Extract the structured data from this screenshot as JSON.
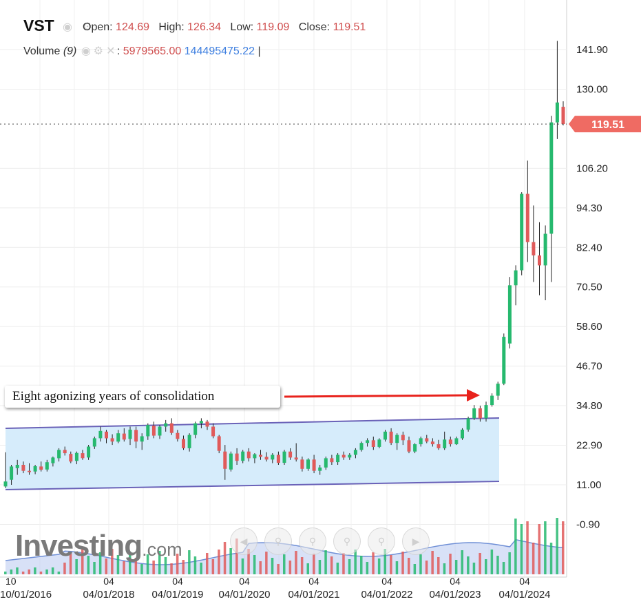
{
  "header": {
    "symbol": "VST",
    "open_label": "Open:",
    "open_value": "124.69",
    "high_label": "High:",
    "high_value": "126.34",
    "low_label": "Low:",
    "low_value": "119.09",
    "close_label": "Close:",
    "close_value": "119.51",
    "volume_label": "Volume",
    "volume_period": "(9)",
    "volume_value_1": "5979565.00",
    "volume_value_2": "144495475.22"
  },
  "annotation": {
    "text": "Eight agonizing years of consolidation"
  },
  "watermark": {
    "text_main": "Investing",
    "text_suffix": ".com"
  },
  "colors": {
    "up": "#26b96e",
    "down": "#e05a5a",
    "channel_fill": "#d6ecfb",
    "channel_line": "#6a62b8",
    "arrow": "#e8221c",
    "price_tag": "#ef6b63",
    "volume_avg_fill": "#b8c8f0",
    "volume_avg_line": "#6f8fd6"
  },
  "chart_data": {
    "type": "candlestick",
    "title": "VST",
    "y_axis": {
      "ticks": [
        "141.90",
        "130.00",
        "106.20",
        "94.30",
        "82.40",
        "70.50",
        "58.60",
        "46.70",
        "34.80",
        "22.90",
        "11.00",
        "-0.90"
      ],
      "range": [
        -0.9,
        141.9
      ],
      "position": "right"
    },
    "x_axis": {
      "ticks": [
        {
          "top": "10",
          "bottom": "10/01/2016"
        },
        {
          "top": "04",
          "bottom": "04/01/2018"
        },
        {
          "top": "04",
          "bottom": "04/01/2019"
        },
        {
          "top": "04",
          "bottom": "04/01/2020"
        },
        {
          "top": "04",
          "bottom": "04/01/2021"
        },
        {
          "top": "04",
          "bottom": "04/01/2022"
        },
        {
          "top": "04",
          "bottom": "04/01/2023"
        },
        {
          "top": "04",
          "bottom": "04/01/2024"
        }
      ]
    },
    "last_price": "119.51",
    "candles": [
      {
        "o": 10.5,
        "h": 20.8,
        "l": 10.0,
        "c": 12.0
      },
      {
        "o": 12.5,
        "h": 17.0,
        "l": 11.0,
        "c": 16.5
      },
      {
        "o": 16.0,
        "h": 18.5,
        "l": 14.0,
        "c": 17.0
      },
      {
        "o": 17.0,
        "h": 18.0,
        "l": 14.5,
        "c": 15.2
      },
      {
        "o": 15.2,
        "h": 17.5,
        "l": 14.0,
        "c": 14.8
      },
      {
        "o": 15.0,
        "h": 17.0,
        "l": 14.2,
        "c": 16.6
      },
      {
        "o": 16.5,
        "h": 18.0,
        "l": 15.0,
        "c": 15.5
      },
      {
        "o": 15.6,
        "h": 18.5,
        "l": 15.0,
        "c": 17.8
      },
      {
        "o": 17.5,
        "h": 19.5,
        "l": 16.5,
        "c": 19.2
      },
      {
        "o": 19.0,
        "h": 22.0,
        "l": 18.0,
        "c": 21.5
      },
      {
        "o": 21.5,
        "h": 22.5,
        "l": 19.8,
        "c": 20.5
      },
      {
        "o": 20.3,
        "h": 21.0,
        "l": 17.5,
        "c": 18.0
      },
      {
        "o": 18.2,
        "h": 21.0,
        "l": 17.2,
        "c": 20.6
      },
      {
        "o": 20.5,
        "h": 21.5,
        "l": 18.5,
        "c": 19.0
      },
      {
        "o": 19.2,
        "h": 23.0,
        "l": 18.5,
        "c": 22.5
      },
      {
        "o": 22.5,
        "h": 25.5,
        "l": 21.8,
        "c": 25.0
      },
      {
        "o": 25.0,
        "h": 28.5,
        "l": 24.0,
        "c": 27.2
      },
      {
        "o": 27.0,
        "h": 27.5,
        "l": 23.5,
        "c": 25.0
      },
      {
        "o": 25.0,
        "h": 26.2,
        "l": 23.0,
        "c": 24.0
      },
      {
        "o": 24.0,
        "h": 27.5,
        "l": 23.5,
        "c": 26.5
      },
      {
        "o": 26.4,
        "h": 28.0,
        "l": 24.0,
        "c": 24.6
      },
      {
        "o": 24.8,
        "h": 28.5,
        "l": 23.0,
        "c": 27.6
      },
      {
        "o": 27.5,
        "h": 28.5,
        "l": 22.0,
        "c": 24.0
      },
      {
        "o": 24.0,
        "h": 26.5,
        "l": 21.5,
        "c": 25.6
      },
      {
        "o": 25.6,
        "h": 29.5,
        "l": 24.5,
        "c": 29.0
      },
      {
        "o": 28.8,
        "h": 30.0,
        "l": 25.0,
        "c": 25.8
      },
      {
        "o": 25.8,
        "h": 29.0,
        "l": 24.8,
        "c": 28.5
      },
      {
        "o": 28.5,
        "h": 30.5,
        "l": 27.0,
        "c": 29.5
      },
      {
        "o": 29.5,
        "h": 31.0,
        "l": 26.0,
        "c": 26.6
      },
      {
        "o": 26.6,
        "h": 27.5,
        "l": 24.0,
        "c": 24.8
      },
      {
        "o": 24.8,
        "h": 25.8,
        "l": 21.5,
        "c": 22.0
      },
      {
        "o": 22.0,
        "h": 26.5,
        "l": 21.0,
        "c": 26.0
      },
      {
        "o": 26.0,
        "h": 30.0,
        "l": 25.0,
        "c": 29.5
      },
      {
        "o": 29.5,
        "h": 31.0,
        "l": 28.0,
        "c": 30.2
      },
      {
        "o": 30.0,
        "h": 30.5,
        "l": 27.5,
        "c": 28.5
      },
      {
        "o": 28.5,
        "h": 29.5,
        "l": 25.0,
        "c": 25.6
      },
      {
        "o": 25.6,
        "h": 26.0,
        "l": 20.5,
        "c": 21.2
      },
      {
        "o": 21.0,
        "h": 23.0,
        "l": 12.5,
        "c": 15.8
      },
      {
        "o": 15.6,
        "h": 21.0,
        "l": 15.0,
        "c": 20.4
      },
      {
        "o": 20.4,
        "h": 22.0,
        "l": 17.0,
        "c": 18.2
      },
      {
        "o": 18.2,
        "h": 21.5,
        "l": 17.5,
        "c": 21.0
      },
      {
        "o": 21.0,
        "h": 22.0,
        "l": 18.0,
        "c": 19.0
      },
      {
        "o": 19.0,
        "h": 20.5,
        "l": 17.5,
        "c": 20.2
      },
      {
        "o": 20.0,
        "h": 21.5,
        "l": 18.5,
        "c": 19.4
      },
      {
        "o": 19.4,
        "h": 20.8,
        "l": 18.0,
        "c": 18.6
      },
      {
        "o": 18.6,
        "h": 20.5,
        "l": 17.5,
        "c": 20.0
      },
      {
        "o": 20.0,
        "h": 21.0,
        "l": 17.0,
        "c": 17.6
      },
      {
        "o": 17.6,
        "h": 21.5,
        "l": 17.0,
        "c": 21.0
      },
      {
        "o": 21.0,
        "h": 22.0,
        "l": 18.5,
        "c": 19.2
      },
      {
        "o": 19.2,
        "h": 23.5,
        "l": 18.0,
        "c": 18.6
      },
      {
        "o": 18.6,
        "h": 19.5,
        "l": 15.0,
        "c": 15.8
      },
      {
        "o": 15.8,
        "h": 19.0,
        "l": 15.2,
        "c": 18.6
      },
      {
        "o": 18.6,
        "h": 20.0,
        "l": 14.5,
        "c": 15.2
      },
      {
        "o": 15.2,
        "h": 17.0,
        "l": 14.0,
        "c": 16.2
      },
      {
        "o": 16.2,
        "h": 19.5,
        "l": 15.5,
        "c": 19.0
      },
      {
        "o": 19.0,
        "h": 20.0,
        "l": 17.0,
        "c": 17.8
      },
      {
        "o": 17.8,
        "h": 20.5,
        "l": 17.0,
        "c": 20.0
      },
      {
        "o": 20.0,
        "h": 21.0,
        "l": 18.5,
        "c": 19.2
      },
      {
        "o": 19.2,
        "h": 20.5,
        "l": 18.5,
        "c": 20.0
      },
      {
        "o": 20.0,
        "h": 22.0,
        "l": 19.0,
        "c": 21.5
      },
      {
        "o": 21.5,
        "h": 24.0,
        "l": 21.0,
        "c": 23.6
      },
      {
        "o": 23.6,
        "h": 25.0,
        "l": 22.5,
        "c": 24.4
      },
      {
        "o": 24.4,
        "h": 25.5,
        "l": 21.5,
        "c": 22.4
      },
      {
        "o": 22.4,
        "h": 25.0,
        "l": 22.0,
        "c": 24.6
      },
      {
        "o": 24.6,
        "h": 27.5,
        "l": 24.0,
        "c": 27.0
      },
      {
        "o": 27.0,
        "h": 28.0,
        "l": 23.0,
        "c": 23.6
      },
      {
        "o": 23.6,
        "h": 26.5,
        "l": 21.5,
        "c": 26.0
      },
      {
        "o": 26.0,
        "h": 27.0,
        "l": 23.0,
        "c": 24.4
      },
      {
        "o": 24.4,
        "h": 25.5,
        "l": 20.5,
        "c": 21.0
      },
      {
        "o": 21.0,
        "h": 23.5,
        "l": 20.5,
        "c": 23.2
      },
      {
        "o": 23.2,
        "h": 25.5,
        "l": 22.5,
        "c": 25.0
      },
      {
        "o": 25.0,
        "h": 26.0,
        "l": 23.5,
        "c": 24.0
      },
      {
        "o": 24.0,
        "h": 25.0,
        "l": 22.5,
        "c": 23.2
      },
      {
        "o": 23.2,
        "h": 24.5,
        "l": 21.5,
        "c": 22.0
      },
      {
        "o": 22.0,
        "h": 27.0,
        "l": 21.5,
        "c": 24.6
      },
      {
        "o": 24.6,
        "h": 25.5,
        "l": 22.5,
        "c": 23.2
      },
      {
        "o": 23.2,
        "h": 25.5,
        "l": 23.0,
        "c": 25.0
      },
      {
        "o": 25.0,
        "h": 28.0,
        "l": 24.5,
        "c": 27.6
      },
      {
        "o": 27.6,
        "h": 31.5,
        "l": 27.0,
        "c": 31.0
      },
      {
        "o": 31.0,
        "h": 35.0,
        "l": 30.5,
        "c": 34.0
      },
      {
        "o": 34.0,
        "h": 34.8,
        "l": 30.0,
        "c": 31.0
      },
      {
        "o": 31.0,
        "h": 36.0,
        "l": 30.0,
        "c": 35.0
      },
      {
        "o": 35.0,
        "h": 38.5,
        "l": 34.5,
        "c": 37.8
      },
      {
        "o": 37.8,
        "h": 42.0,
        "l": 36.5,
        "c": 41.4
      },
      {
        "o": 41.4,
        "h": 56.5,
        "l": 41.0,
        "c": 55.5
      },
      {
        "o": 53.5,
        "h": 73.5,
        "l": 52.0,
        "c": 71.0
      },
      {
        "o": 71.0,
        "h": 77.0,
        "l": 65.0,
        "c": 75.5
      },
      {
        "o": 75.5,
        "h": 99.0,
        "l": 74.0,
        "c": 98.5
      },
      {
        "o": 98.5,
        "h": 108.5,
        "l": 78.0,
        "c": 84.0
      },
      {
        "o": 84.0,
        "h": 95.0,
        "l": 72.0,
        "c": 80.0
      },
      {
        "o": 80.0,
        "h": 90.0,
        "l": 68.0,
        "c": 77.0
      },
      {
        "o": 77.0,
        "h": 89.0,
        "l": 66.5,
        "c": 86.5
      },
      {
        "o": 86.5,
        "h": 122.0,
        "l": 72.0,
        "c": 120.0
      },
      {
        "o": 120.0,
        "h": 144.5,
        "l": 115.0,
        "c": 126.0
      },
      {
        "o": 124.69,
        "h": 126.34,
        "l": 119.09,
        "c": 119.51
      }
    ],
    "volume_overlay": "volume bars with moving-average area at bottom of chart",
    "channel_annotation": "consolidation channel drawn across 2016-2023 lows/highs"
  }
}
